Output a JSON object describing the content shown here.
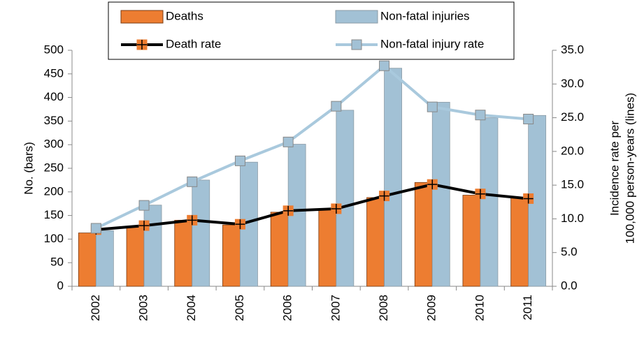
{
  "chart_data": {
    "type": "bar",
    "categories": [
      "2002",
      "2003",
      "2004",
      "2005",
      "2006",
      "2007",
      "2008",
      "2009",
      "2010",
      "2011"
    ],
    "series": [
      {
        "name": "Deaths",
        "type": "bar",
        "color": "#ED7D31",
        "values": [
          113,
          127,
          140,
          130,
          157,
          162,
          188,
          220,
          193,
          187
        ]
      },
      {
        "name": "Non-fatal injuries",
        "type": "bar",
        "color": "#A2C1D5",
        "values": [
          118,
          172,
          225,
          263,
          301,
          373,
          462,
          390,
          357,
          362
        ]
      },
      {
        "name": "Death rate",
        "type": "line",
        "axis": "y2",
        "color": "#000000",
        "marker_color": "#ED7D31",
        "values": [
          8.4,
          9.0,
          9.8,
          9.2,
          11.2,
          11.5,
          13.4,
          15.1,
          13.7,
          13.0
        ]
      },
      {
        "name": "Non-fatal injury rate",
        "type": "line",
        "axis": "y2",
        "color": "#A9C9DD",
        "marker_color": "#A2C1D5",
        "values": [
          8.6,
          12.0,
          15.5,
          18.6,
          21.4,
          26.7,
          32.7,
          26.6,
          25.4,
          24.8
        ]
      }
    ],
    "ylabel": "No. (bars)",
    "y2label": [
      "Incidence rate per",
      "100,000 person-years (lines)"
    ],
    "ylim": [
      0,
      500
    ],
    "yticks": [
      0,
      50,
      100,
      150,
      200,
      250,
      300,
      350,
      400,
      450,
      500
    ],
    "y2lim": [
      0,
      35
    ],
    "y2ticks": [
      {
        "value": 0,
        "label": "0.0"
      },
      {
        "value": 5,
        "label": "5.0"
      },
      {
        "value": 10,
        "label": "10.0"
      },
      {
        "value": 15,
        "label": "15.0"
      },
      {
        "value": 20,
        "label": "20.0"
      },
      {
        "value": 25,
        "label": "25.0"
      },
      {
        "value": 30,
        "label": "30.0"
      },
      {
        "value": 35,
        "label": "35.0"
      }
    ],
    "legend": "top"
  }
}
